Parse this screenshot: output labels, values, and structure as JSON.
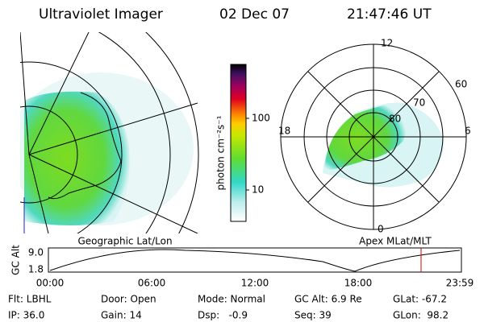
{
  "header": {
    "title": "Ultraviolet Imager",
    "date": "02 Dec 07",
    "time": "21:47:46 UT"
  },
  "colorbar": {
    "label": "photon cm⁻²s⁻¹",
    "ticks": [
      "100",
      "10"
    ]
  },
  "polar": {
    "mlt": {
      "top": "12",
      "left": "18",
      "right": "6",
      "bottom": "0"
    },
    "mlat": [
      "60",
      "70",
      "80"
    ]
  },
  "captions": {
    "left": "Geographic Lat/Lon",
    "right": "Apex MLat/MLT"
  },
  "altitude": {
    "ylabel": "GC Alt",
    "yticks": [
      "9.0",
      "1.8"
    ],
    "xticks": [
      "00:00",
      "06:00",
      "12:00",
      "18:00",
      "23:59"
    ]
  },
  "footer": [
    [
      "Flt: LBHL",
      "Door: Open",
      "Mode: Normal",
      "GC Alt: 6.9 Re",
      "GLat: -67.2"
    ],
    [
      "IP: 36.0",
      "Gain: 14",
      "Dsp:   -0.9",
      "Seq: 39",
      "GLon:  98.2"
    ]
  ]
}
